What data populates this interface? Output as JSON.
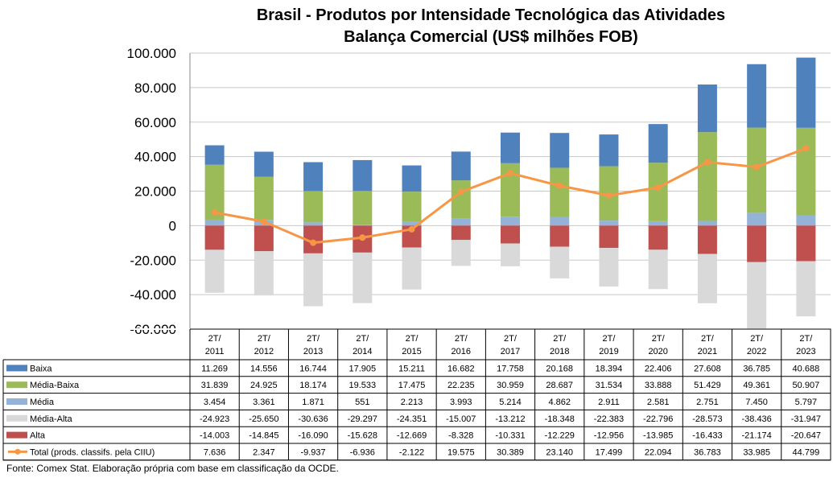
{
  "title_line1": "Brasil - Produtos por Intensidade Tecnológica das Atividades",
  "title_line2": "Balança Comercial (US$ milhões FOB)",
  "source": "Fonte: Comex Stat. Elaboração própria com base em classificação da OCDE.",
  "chart_data": {
    "type": "bar",
    "stacked": true,
    "categories": [
      [
        "2T/",
        "2011"
      ],
      [
        "2T/",
        "2012"
      ],
      [
        "2T/",
        "2013"
      ],
      [
        "2T/",
        "2014"
      ],
      [
        "2T/",
        "2015"
      ],
      [
        "2T/",
        "2016"
      ],
      [
        "2T/",
        "2017"
      ],
      [
        "2T/",
        "2018"
      ],
      [
        "2T/",
        "2019"
      ],
      [
        "2T/",
        "2020"
      ],
      [
        "2T/",
        "2021"
      ],
      [
        "2T/",
        "2022"
      ],
      [
        "2T/",
        "2023"
      ]
    ],
    "ylim": [
      -60000,
      100000
    ],
    "yticks": [
      100000,
      80000,
      60000,
      40000,
      20000,
      0,
      -20000,
      -40000,
      -60000
    ],
    "ytick_labels": [
      "100.000",
      "80.000",
      "60.000",
      "40.000",
      "20.000",
      "0",
      "-20.000",
      "-40.000",
      "-60.000"
    ],
    "grid": true,
    "legend": "data table",
    "series": [
      {
        "name": "Baixa",
        "color": "#4f81bd",
        "values": [
          11269,
          14556,
          16744,
          17905,
          15211,
          16682,
          17758,
          20168,
          18394,
          22406,
          27608,
          36785,
          40688
        ],
        "labels": [
          "11.269",
          "14.556",
          "16.744",
          "17.905",
          "15.211",
          "16.682",
          "17.758",
          "20.168",
          "18.394",
          "22.406",
          "27.608",
          "36.785",
          "40.688"
        ]
      },
      {
        "name": "Média-Baixa",
        "color": "#9bbb59",
        "values": [
          31839,
          24925,
          18174,
          19533,
          17475,
          22235,
          30959,
          28687,
          31534,
          33888,
          51429,
          49361,
          50907
        ],
        "labels": [
          "31.839",
          "24.925",
          "18.174",
          "19.533",
          "17.475",
          "22.235",
          "30.959",
          "28.687",
          "31.534",
          "33.888",
          "51.429",
          "49.361",
          "50.907"
        ]
      },
      {
        "name": "Média",
        "color": "#95b3d7",
        "values": [
          3454,
          3361,
          1871,
          551,
          2213,
          3993,
          5214,
          4862,
          2911,
          2581,
          2751,
          7450,
          5797
        ],
        "labels": [
          "3.454",
          "3.361",
          "1.871",
          "551",
          "2.213",
          "3.993",
          "5.214",
          "4.862",
          "2.911",
          "2.581",
          "2.751",
          "7.450",
          "5.797"
        ]
      },
      {
        "name": "Média-Alta",
        "color": "#d9d9d9",
        "values": [
          -24923,
          -25650,
          -30636,
          -29297,
          -24351,
          -15007,
          -13212,
          -18348,
          -22383,
          -22796,
          -28573,
          -38436,
          -31947
        ],
        "labels": [
          "-24.923",
          "-25.650",
          "-30.636",
          "-29.297",
          "-24.351",
          "-15.007",
          "-13.212",
          "-18.348",
          "-22.383",
          "-22.796",
          "-28.573",
          "-38.436",
          "-31.947"
        ]
      },
      {
        "name": "Alta",
        "color": "#c0504d",
        "values": [
          -14003,
          -14845,
          -16090,
          -15628,
          -12669,
          -8328,
          -10331,
          -12229,
          -12956,
          -13985,
          -16433,
          -21174,
          -20647
        ],
        "labels": [
          "-14.003",
          "-14.845",
          "-16.090",
          "-15.628",
          "-12.669",
          "-8.328",
          "-10.331",
          "-12.229",
          "-12.956",
          "-13.985",
          "-16.433",
          "-21.174",
          "-20.647"
        ]
      },
      {
        "name": "Total (prods. classifs. pela CIIU)",
        "color": "#f79646",
        "type": "line",
        "values": [
          7636,
          2347,
          -9937,
          -6936,
          -2122,
          19575,
          30389,
          23140,
          17499,
          22094,
          36783,
          33985,
          44799
        ],
        "labels": [
          "7.636",
          "2.347",
          "-9.937",
          "-6.936",
          "-2.122",
          "19.575",
          "30.389",
          "23.140",
          "17.499",
          "22.094",
          "36.783",
          "33.985",
          "44.799"
        ]
      }
    ]
  }
}
